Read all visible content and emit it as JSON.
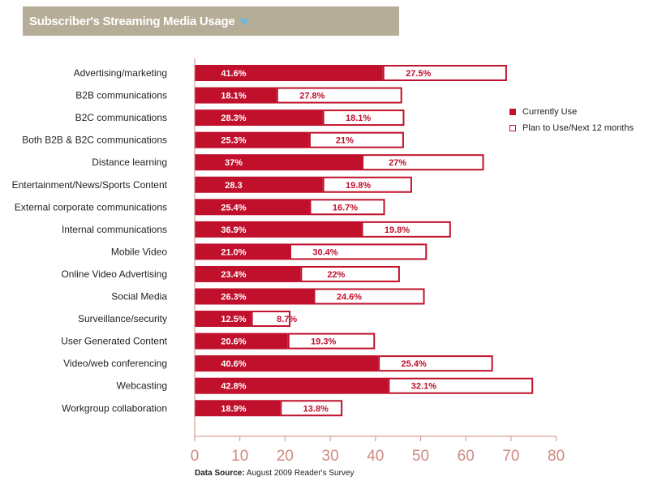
{
  "title": "Subscriber's Streaming Media Usage",
  "source_label": "Data Source:",
  "source_text": "August 2009 Reader's Survey",
  "colors": {
    "current": "#c0102c",
    "plan_fill": "#ffffff",
    "axis": "#d08a80",
    "title_bg": "#b5ad97"
  },
  "chart_data": {
    "type": "bar",
    "orientation": "horizontal",
    "stacked": true,
    "categories": [
      "Advertising/marketing",
      "B2B communications",
      "B2C communications",
      "Both B2B & B2C communications",
      "Distance learning",
      "Entertainment/News/Sports Content",
      "External corporate communications",
      "Internal communications",
      "Mobile Video",
      "Online Video Advertising",
      "Social Media",
      "Surveillance/security",
      "User Generated Content",
      "Video/web conferencing",
      "Webcasting",
      "Workgroup collaboration"
    ],
    "series": [
      {
        "name": "Currently Use",
        "values": [
          41.6,
          18.1,
          28.3,
          25.3,
          37,
          28.3,
          25.4,
          36.9,
          21.0,
          23.4,
          26.3,
          12.5,
          20.6,
          40.6,
          42.8,
          18.9
        ],
        "labels": [
          "41.6%",
          "18.1%",
          "28.3%",
          "25.3%",
          "37%",
          "28.3",
          "25.4%",
          "36.9%",
          "21.0%",
          "23.4%",
          "26.3%",
          "12.5%",
          "20.6%",
          "40.6%",
          "42.8%",
          "18.9%"
        ]
      },
      {
        "name": "Plan to Use/Next 12 months",
        "values": [
          27.5,
          27.8,
          18.1,
          21,
          27,
          19.8,
          16.7,
          19.8,
          30.4,
          22,
          24.6,
          8.7,
          19.3,
          25.4,
          32.1,
          13.8
        ],
        "labels": [
          "27.5%",
          "27.8%",
          "18.1%",
          "21%",
          "27%",
          "19.8%",
          "16.7%",
          "19.8%",
          "30.4%",
          "22%",
          "24.6%",
          "8.7%",
          "19.3%",
          "25.4%",
          "32.1%",
          "13.8%"
        ]
      }
    ],
    "xlim": [
      0,
      80
    ],
    "xticks": [
      0,
      10,
      20,
      30,
      40,
      50,
      60,
      70,
      80
    ],
    "legend_position": "right",
    "grid": false
  }
}
